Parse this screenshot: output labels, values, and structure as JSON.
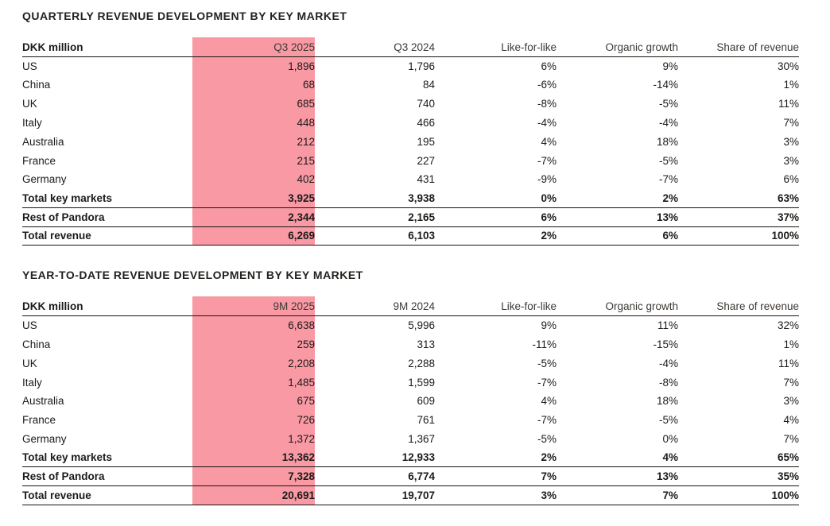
{
  "colors": {
    "highlight_pink": "#f899a4",
    "text": "#1c1b19",
    "rule": "#161513"
  },
  "tables": [
    {
      "title": "QUARTERLY REVENUE DEVELOPMENT BY KEY MARKET",
      "highlight_column": "Q3 2025",
      "columns": [
        "DKK million",
        "Q3 2025",
        "Q3 2024",
        "Like-for-like",
        "Organic growth",
        "Share of revenue"
      ],
      "rows": [
        {
          "label": "US",
          "values": [
            "1,896",
            "1,796",
            "6%",
            "9%",
            "30%"
          ],
          "bold": false
        },
        {
          "label": "China",
          "values": [
            "68",
            "84",
            "-6%",
            "-14%",
            "1%"
          ],
          "bold": false
        },
        {
          "label": "UK",
          "values": [
            "685",
            "740",
            "-8%",
            "-5%",
            "11%"
          ],
          "bold": false
        },
        {
          "label": "Italy",
          "values": [
            "448",
            "466",
            "-4%",
            "-4%",
            "7%"
          ],
          "bold": false
        },
        {
          "label": "Australia",
          "values": [
            "212",
            "195",
            "4%",
            "18%",
            "3%"
          ],
          "bold": false
        },
        {
          "label": "France",
          "values": [
            "215",
            "227",
            "-7%",
            "-5%",
            "3%"
          ],
          "bold": false
        },
        {
          "label": "Germany",
          "values": [
            "402",
            "431",
            "-9%",
            "-7%",
            "6%"
          ],
          "bold": false
        },
        {
          "label": "Total key markets",
          "values": [
            "3,925",
            "3,938",
            "0%",
            "2%",
            "63%"
          ],
          "bold": true
        },
        {
          "label": "Rest of Pandora",
          "values": [
            "2,344",
            "2,165",
            "6%",
            "13%",
            "37%"
          ],
          "bold": true
        },
        {
          "label": "Total revenue",
          "values": [
            "6,269",
            "6,103",
            "2%",
            "6%",
            "100%"
          ],
          "bold": true
        }
      ]
    },
    {
      "title": "YEAR-TO-DATE REVENUE DEVELOPMENT BY KEY MARKET",
      "highlight_column": "9M 2025",
      "columns": [
        "DKK million",
        "9M 2025",
        "9M 2024",
        "Like-for-like",
        "Organic growth",
        "Share of revenue"
      ],
      "rows": [
        {
          "label": "US",
          "values": [
            "6,638",
            "5,996",
            "9%",
            "11%",
            "32%"
          ],
          "bold": false
        },
        {
          "label": "China",
          "values": [
            "259",
            "313",
            "-11%",
            "-15%",
            "1%"
          ],
          "bold": false
        },
        {
          "label": "UK",
          "values": [
            "2,208",
            "2,288",
            "-5%",
            "-4%",
            "11%"
          ],
          "bold": false
        },
        {
          "label": "Italy",
          "values": [
            "1,485",
            "1,599",
            "-7%",
            "-8%",
            "7%"
          ],
          "bold": false
        },
        {
          "label": "Australia",
          "values": [
            "675",
            "609",
            "4%",
            "18%",
            "3%"
          ],
          "bold": false
        },
        {
          "label": "France",
          "values": [
            "726",
            "761",
            "-7%",
            "-5%",
            "4%"
          ],
          "bold": false
        },
        {
          "label": "Germany",
          "values": [
            "1,372",
            "1,367",
            "-5%",
            "0%",
            "7%"
          ],
          "bold": false
        },
        {
          "label": "Total key markets",
          "values": [
            "13,362",
            "12,933",
            "2%",
            "4%",
            "65%"
          ],
          "bold": true
        },
        {
          "label": "Rest of Pandora",
          "values": [
            "7,328",
            "6,774",
            "7%",
            "13%",
            "35%"
          ],
          "bold": true
        },
        {
          "label": "Total revenue",
          "values": [
            "20,691",
            "19,707",
            "3%",
            "7%",
            "100%"
          ],
          "bold": true
        }
      ]
    }
  ]
}
